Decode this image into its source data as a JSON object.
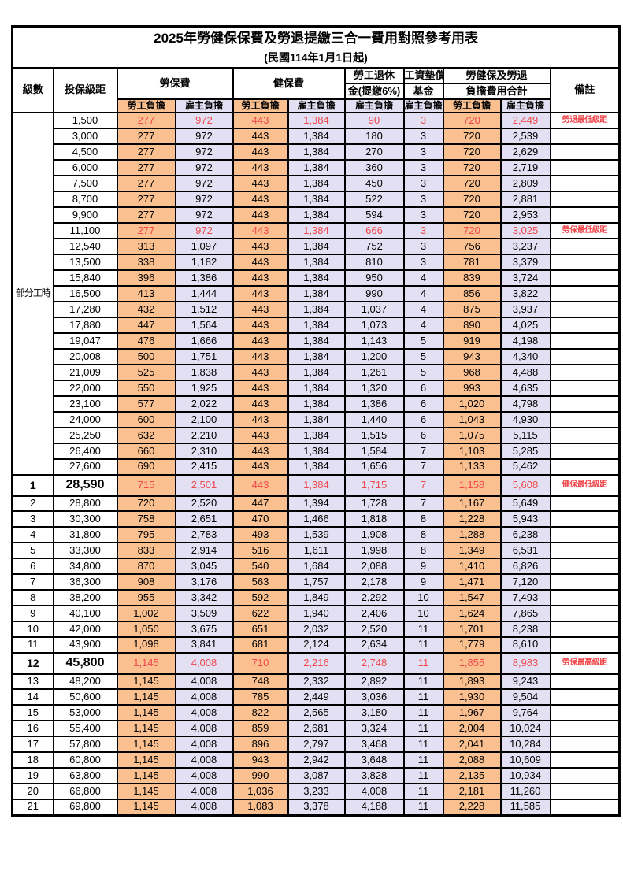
{
  "title": "2025年勞健保保費及勞退提繳三合一費用對照參考用表",
  "subtitle": "(民國114年1月1日起)",
  "header": {
    "level": "級數",
    "bracket": "投保級距",
    "labor_insurance": "勞保費",
    "health_insurance": "健保費",
    "pension_line1": "勞工退休",
    "pension_line2": "金(提繳6%)",
    "wage_fund_line1": "工資墊償",
    "wage_fund_line2": "基金",
    "total_line1": "勞健保及勞退",
    "total_line2": "負擔費用合計",
    "remark": "備註",
    "employee": "勞工負擔",
    "employer": "雇主負擔"
  },
  "colors": {
    "employee_bg": "#FAC08F",
    "employer_bg": "#E2E0F2",
    "highlight_red": "#F0484C",
    "border": "#000000"
  },
  "part_time_label": "部分工時",
  "part_time_rowspan": 23,
  "rows": [
    {
      "level": "",
      "bracket": "1,500",
      "values": [
        "277",
        "972",
        "443",
        "1,384",
        "90",
        "3",
        "720",
        "2,449"
      ],
      "remark": "勞退最低級距",
      "red": true
    },
    {
      "level": "",
      "bracket": "3,000",
      "values": [
        "277",
        "972",
        "443",
        "1,384",
        "180",
        "3",
        "720",
        "2,539"
      ],
      "remark": ""
    },
    {
      "level": "",
      "bracket": "4,500",
      "values": [
        "277",
        "972",
        "443",
        "1,384",
        "270",
        "3",
        "720",
        "2,629"
      ],
      "remark": ""
    },
    {
      "level": "",
      "bracket": "6,000",
      "values": [
        "277",
        "972",
        "443",
        "1,384",
        "360",
        "3",
        "720",
        "2,719"
      ],
      "remark": ""
    },
    {
      "level": "",
      "bracket": "7,500",
      "values": [
        "277",
        "972",
        "443",
        "1,384",
        "450",
        "3",
        "720",
        "2,809"
      ],
      "remark": ""
    },
    {
      "level": "",
      "bracket": "8,700",
      "values": [
        "277",
        "972",
        "443",
        "1,384",
        "522",
        "3",
        "720",
        "2,881"
      ],
      "remark": ""
    },
    {
      "level": "",
      "bracket": "9,900",
      "values": [
        "277",
        "972",
        "443",
        "1,384",
        "594",
        "3",
        "720",
        "2,953"
      ],
      "remark": ""
    },
    {
      "level": "",
      "bracket": "11,100",
      "values": [
        "277",
        "972",
        "443",
        "1,384",
        "666",
        "3",
        "720",
        "3,025"
      ],
      "remark": "勞保最低級距",
      "red": true
    },
    {
      "level": "",
      "bracket": "12,540",
      "values": [
        "313",
        "1,097",
        "443",
        "1,384",
        "752",
        "3",
        "756",
        "3,237"
      ],
      "remark": ""
    },
    {
      "level": "",
      "bracket": "13,500",
      "values": [
        "338",
        "1,182",
        "443",
        "1,384",
        "810",
        "3",
        "781",
        "3,379"
      ],
      "remark": ""
    },
    {
      "level": "",
      "bracket": "15,840",
      "values": [
        "396",
        "1,386",
        "443",
        "1,384",
        "950",
        "4",
        "839",
        "3,724"
      ],
      "remark": ""
    },
    {
      "level": "",
      "bracket": "16,500",
      "values": [
        "413",
        "1,444",
        "443",
        "1,384",
        "990",
        "4",
        "856",
        "3,822"
      ],
      "remark": ""
    },
    {
      "level": "",
      "bracket": "17,280",
      "values": [
        "432",
        "1,512",
        "443",
        "1,384",
        "1,037",
        "4",
        "875",
        "3,937"
      ],
      "remark": ""
    },
    {
      "level": "",
      "bracket": "17,880",
      "values": [
        "447",
        "1,564",
        "443",
        "1,384",
        "1,073",
        "4",
        "890",
        "4,025"
      ],
      "remark": ""
    },
    {
      "level": "",
      "bracket": "19,047",
      "values": [
        "476",
        "1,666",
        "443",
        "1,384",
        "1,143",
        "5",
        "919",
        "4,198"
      ],
      "remark": ""
    },
    {
      "level": "",
      "bracket": "20,008",
      "values": [
        "500",
        "1,751",
        "443",
        "1,384",
        "1,200",
        "5",
        "943",
        "4,340"
      ],
      "remark": ""
    },
    {
      "level": "",
      "bracket": "21,009",
      "values": [
        "525",
        "1,838",
        "443",
        "1,384",
        "1,261",
        "5",
        "968",
        "4,488"
      ],
      "remark": ""
    },
    {
      "level": "",
      "bracket": "22,000",
      "values": [
        "550",
        "1,925",
        "443",
        "1,384",
        "1,320",
        "6",
        "993",
        "4,635"
      ],
      "remark": ""
    },
    {
      "level": "",
      "bracket": "23,100",
      "values": [
        "577",
        "2,022",
        "443",
        "1,384",
        "1,386",
        "6",
        "1,020",
        "4,798"
      ],
      "remark": ""
    },
    {
      "level": "",
      "bracket": "24,000",
      "values": [
        "600",
        "2,100",
        "443",
        "1,384",
        "1,440",
        "6",
        "1,043",
        "4,930"
      ],
      "remark": ""
    },
    {
      "level": "",
      "bracket": "25,250",
      "values": [
        "632",
        "2,210",
        "443",
        "1,384",
        "1,515",
        "6",
        "1,075",
        "5,115"
      ],
      "remark": ""
    },
    {
      "level": "",
      "bracket": "26,400",
      "values": [
        "660",
        "2,310",
        "443",
        "1,384",
        "1,584",
        "7",
        "1,103",
        "5,285"
      ],
      "remark": ""
    },
    {
      "level": "",
      "bracket": "27,600",
      "values": [
        "690",
        "2,415",
        "443",
        "1,384",
        "1,656",
        "7",
        "1,133",
        "5,462"
      ],
      "remark": ""
    },
    {
      "level": "1",
      "bracket": "28,590",
      "values": [
        "715",
        "2,501",
        "443",
        "1,384",
        "1,715",
        "7",
        "1,158",
        "5,608"
      ],
      "remark": "健保最低級距",
      "red": true,
      "key": true
    },
    {
      "level": "2",
      "bracket": "28,800",
      "values": [
        "720",
        "2,520",
        "447",
        "1,394",
        "1,728",
        "7",
        "1,167",
        "5,649"
      ],
      "remark": ""
    },
    {
      "level": "3",
      "bracket": "30,300",
      "values": [
        "758",
        "2,651",
        "470",
        "1,466",
        "1,818",
        "8",
        "1,228",
        "5,943"
      ],
      "remark": ""
    },
    {
      "level": "4",
      "bracket": "31,800",
      "values": [
        "795",
        "2,783",
        "493",
        "1,539",
        "1,908",
        "8",
        "1,288",
        "6,238"
      ],
      "remark": ""
    },
    {
      "level": "5",
      "bracket": "33,300",
      "values": [
        "833",
        "2,914",
        "516",
        "1,611",
        "1,998",
        "8",
        "1,349",
        "6,531"
      ],
      "remark": ""
    },
    {
      "level": "6",
      "bracket": "34,800",
      "values": [
        "870",
        "3,045",
        "540",
        "1,684",
        "2,088",
        "9",
        "1,410",
        "6,826"
      ],
      "remark": ""
    },
    {
      "level": "7",
      "bracket": "36,300",
      "values": [
        "908",
        "3,176",
        "563",
        "1,757",
        "2,178",
        "9",
        "1,471",
        "7,120"
      ],
      "remark": ""
    },
    {
      "level": "8",
      "bracket": "38,200",
      "values": [
        "955",
        "3,342",
        "592",
        "1,849",
        "2,292",
        "10",
        "1,547",
        "7,493"
      ],
      "remark": ""
    },
    {
      "level": "9",
      "bracket": "40,100",
      "values": [
        "1,002",
        "3,509",
        "622",
        "1,940",
        "2,406",
        "10",
        "1,624",
        "7,865"
      ],
      "remark": ""
    },
    {
      "level": "10",
      "bracket": "42,000",
      "values": [
        "1,050",
        "3,675",
        "651",
        "2,032",
        "2,520",
        "11",
        "1,701",
        "8,238"
      ],
      "remark": ""
    },
    {
      "level": "11",
      "bracket": "43,900",
      "values": [
        "1,098",
        "3,841",
        "681",
        "2,124",
        "2,634",
        "11",
        "1,779",
        "8,610"
      ],
      "remark": ""
    },
    {
      "level": "12",
      "bracket": "45,800",
      "values": [
        "1,145",
        "4,008",
        "710",
        "2,216",
        "2,748",
        "11",
        "1,855",
        "8,983"
      ],
      "remark": "勞保最高級距",
      "red": true,
      "key": true
    },
    {
      "level": "13",
      "bracket": "48,200",
      "values": [
        "1,145",
        "4,008",
        "748",
        "2,332",
        "2,892",
        "11",
        "1,893",
        "9,243"
      ],
      "remark": ""
    },
    {
      "level": "14",
      "bracket": "50,600",
      "values": [
        "1,145",
        "4,008",
        "785",
        "2,449",
        "3,036",
        "11",
        "1,930",
        "9,504"
      ],
      "remark": ""
    },
    {
      "level": "15",
      "bracket": "53,000",
      "values": [
        "1,145",
        "4,008",
        "822",
        "2,565",
        "3,180",
        "11",
        "1,967",
        "9,764"
      ],
      "remark": ""
    },
    {
      "level": "16",
      "bracket": "55,400",
      "values": [
        "1,145",
        "4,008",
        "859",
        "2,681",
        "3,324",
        "11",
        "2,004",
        "10,024"
      ],
      "remark": ""
    },
    {
      "level": "17",
      "bracket": "57,800",
      "values": [
        "1,145",
        "4,008",
        "896",
        "2,797",
        "3,468",
        "11",
        "2,041",
        "10,284"
      ],
      "remark": ""
    },
    {
      "level": "18",
      "bracket": "60,800",
      "values": [
        "1,145",
        "4,008",
        "943",
        "2,942",
        "3,648",
        "11",
        "2,088",
        "10,609"
      ],
      "remark": ""
    },
    {
      "level": "19",
      "bracket": "63,800",
      "values": [
        "1,145",
        "4,008",
        "990",
        "3,087",
        "3,828",
        "11",
        "2,135",
        "10,934"
      ],
      "remark": ""
    },
    {
      "level": "20",
      "bracket": "66,800",
      "values": [
        "1,145",
        "4,008",
        "1,036",
        "3,233",
        "4,008",
        "11",
        "2,181",
        "11,260"
      ],
      "remark": ""
    },
    {
      "level": "21",
      "bracket": "69,800",
      "values": [
        "1,145",
        "4,008",
        "1,083",
        "3,378",
        "4,188",
        "11",
        "2,228",
        "11,585"
      ],
      "remark": ""
    }
  ]
}
